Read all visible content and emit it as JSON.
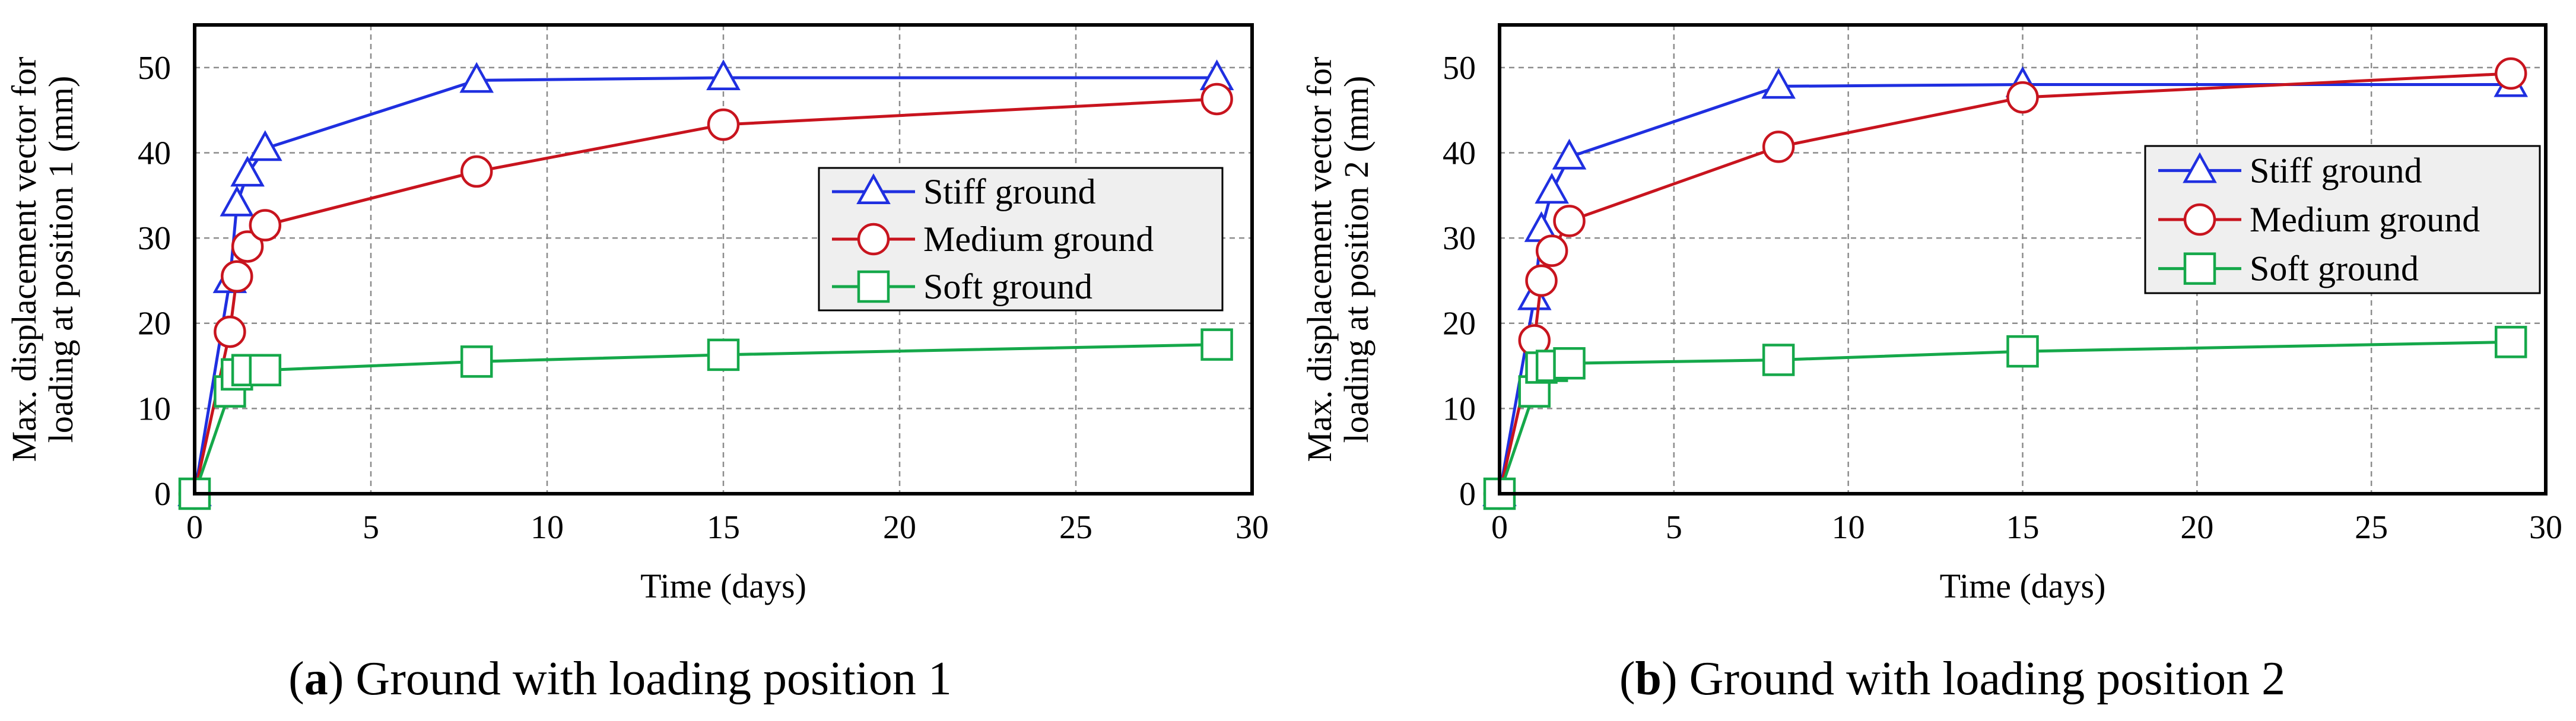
{
  "figure": {
    "captions": [
      {
        "letter": "a",
        "before": "(",
        "after": ") Ground with loading position 1"
      },
      {
        "letter": "b",
        "before": "(",
        "after": ") Ground with loading position 2"
      }
    ]
  },
  "series_styles": [
    {
      "name": "Stiff ground",
      "color": "#1f2fe0",
      "marker": "triangle-icon"
    },
    {
      "name": "Medium ground",
      "color": "#c8141e",
      "marker": "circle-icon"
    },
    {
      "name": "Soft ground",
      "color": "#15a84a",
      "marker": "square-icon"
    }
  ],
  "chart_data": [
    {
      "type": "line",
      "title": "",
      "xlabel": "Time (days)",
      "ylabel": [
        "Max. displacement vector for",
        "loading at position 1 (mm)"
      ],
      "xlim": [
        0,
        30
      ],
      "ylim": [
        0,
        55
      ],
      "xticks": [
        0,
        5,
        10,
        15,
        20,
        25,
        30
      ],
      "yticks": [
        0,
        10,
        20,
        30,
        40,
        50
      ],
      "grid": true,
      "legend_position": "center-right",
      "series": [
        {
          "name": "Stiff ground",
          "x": [
            0,
            1,
            1.2,
            1.5,
            2,
            8,
            15,
            29
          ],
          "y": [
            0,
            25,
            34,
            37.5,
            40.5,
            48.5,
            48.8,
            48.8
          ]
        },
        {
          "name": "Medium ground",
          "x": [
            0,
            1,
            1.2,
            1.5,
            2,
            8,
            15,
            29
          ],
          "y": [
            0,
            19,
            25.5,
            29,
            31.5,
            37.8,
            43.3,
            46.3
          ]
        },
        {
          "name": "Soft ground",
          "x": [
            0,
            1,
            1.2,
            1.5,
            2,
            8,
            15,
            29
          ],
          "y": [
            0,
            12,
            14,
            14.5,
            14.5,
            15.5,
            16.3,
            17.5
          ]
        }
      ]
    },
    {
      "type": "line",
      "title": "",
      "xlabel": "Time (days)",
      "ylabel": [
        "Max. displacement vector for",
        "loading at position 2 (mm)"
      ],
      "xlim": [
        0,
        30
      ],
      "ylim": [
        0,
        55
      ],
      "xticks": [
        0,
        5,
        10,
        15,
        20,
        25,
        30
      ],
      "yticks": [
        0,
        10,
        20,
        30,
        40,
        50
      ],
      "grid": true,
      "legend_position": "center-right",
      "series": [
        {
          "name": "Stiff ground",
          "x": [
            0,
            1,
            1.2,
            1.5,
            2,
            8,
            15,
            29
          ],
          "y": [
            0,
            23,
            31,
            35.5,
            39.5,
            47.8,
            48,
            48
          ]
        },
        {
          "name": "Medium ground",
          "x": [
            0,
            1,
            1.2,
            1.5,
            2,
            8,
            15,
            29
          ],
          "y": [
            0,
            18,
            25,
            28.5,
            32,
            40.7,
            46.5,
            49.3
          ]
        },
        {
          "name": "Soft ground",
          "x": [
            0,
            1,
            1.2,
            1.5,
            2,
            8,
            15,
            29
          ],
          "y": [
            0,
            12,
            14.8,
            15,
            15.3,
            15.7,
            16.7,
            17.8
          ]
        }
      ]
    }
  ]
}
